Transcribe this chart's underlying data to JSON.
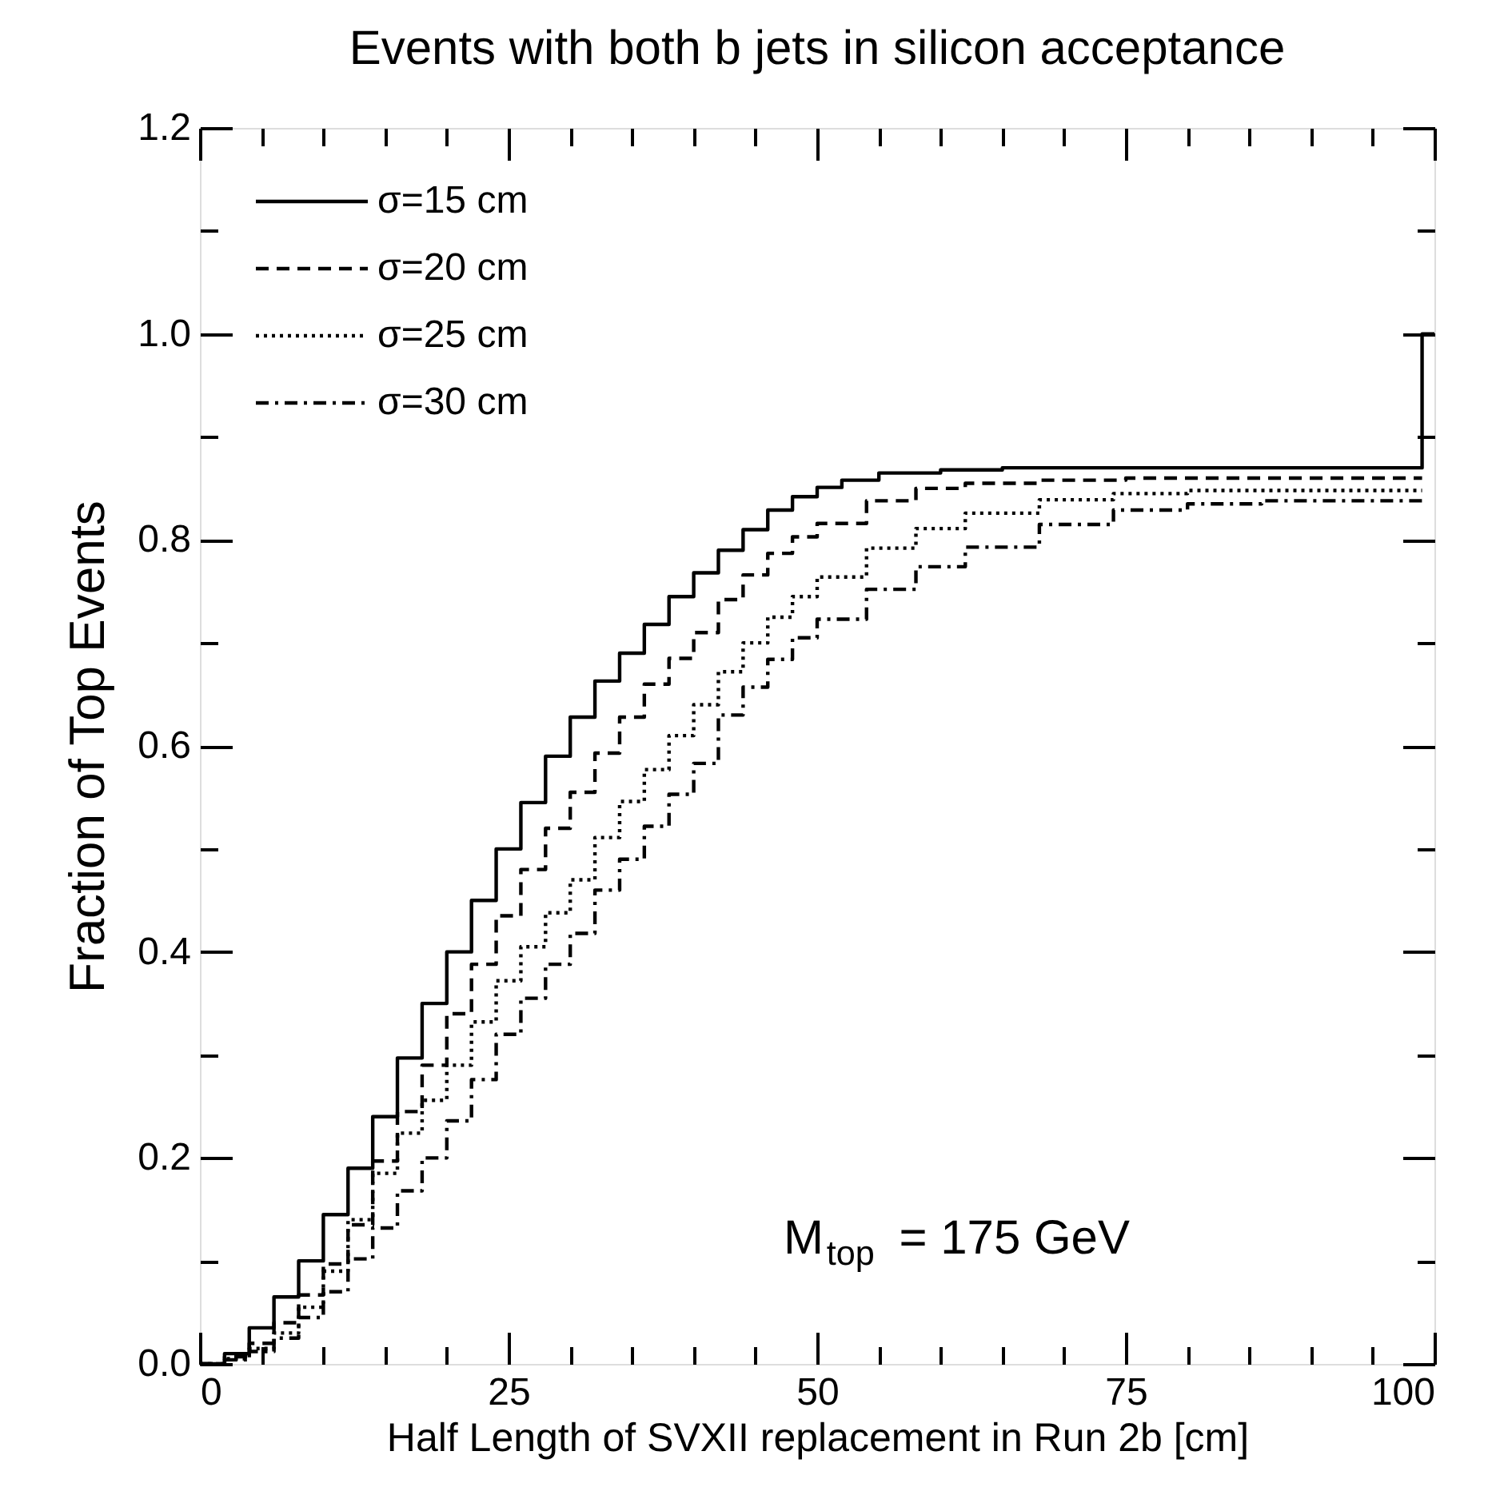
{
  "chart_data": {
    "type": "step",
    "title": "Events with both b jets in silicon acceptance",
    "xlabel": "Half Length of SVXII replacement in Run 2b [cm]",
    "ylabel": "Fraction of Top Events",
    "annotations": [
      "M$_{top}$ = 175 GeV"
    ],
    "xlim": [
      0,
      100
    ],
    "xticks": [
      0,
      {
        "value": 5,
        "label": null
      },
      {
        "value": 10,
        "label": null
      },
      {
        "value": 15,
        "label": null
      },
      {
        "value": 20,
        "label": null
      },
      25,
      {
        "value": 30,
        "label": null
      },
      {
        "value": 35,
        "label": null
      },
      {
        "value": 40,
        "label": null
      },
      {
        "value": 45,
        "label": null
      },
      50,
      {
        "value": 55,
        "label": null
      },
      {
        "value": 60,
        "label": null
      },
      {
        "value": 65,
        "label": null
      },
      {
        "value": 70,
        "label": null
      },
      75,
      {
        "value": 80,
        "label": null
      },
      {
        "value": 85,
        "label": null
      },
      {
        "value": 90,
        "label": null
      },
      {
        "value": 95,
        "label": null
      },
      100
    ],
    "ylim": [
      0,
      1.2
    ],
    "yticks": [
      {
        "value": 0,
        "label": "0.0"
      },
      {
        "value": 0.1,
        "label": null
      },
      {
        "value": 0.2,
        "label": "0.2"
      },
      {
        "value": 0.3,
        "label": null
      },
      {
        "value": 0.4,
        "label": "0.4"
      },
      {
        "value": 0.5,
        "label": null
      },
      {
        "value": 0.6,
        "label": "0.6"
      },
      {
        "value": 0.7,
        "label": null
      },
      {
        "value": 0.8,
        "label": "0.8"
      },
      {
        "value": 0.9,
        "label": null
      },
      {
        "value": 1,
        "label": "1.0"
      },
      {
        "value": 1.1,
        "label": null
      },
      {
        "value": 1.2,
        "label": "1.2"
      }
    ],
    "grid": false,
    "legend": "top left",
    "marker": "none",
    "series": [
      {
        "name": "σ=15 cm",
        "color": "#000000",
        "line_style": "solid",
        "x": [
          0,
          2,
          4,
          6,
          8,
          10,
          12,
          14,
          16,
          18,
          20,
          22,
          24,
          26,
          28,
          30,
          32,
          34,
          36,
          38,
          40,
          42,
          44,
          46,
          48,
          50,
          52,
          55,
          60,
          65,
          99,
          100
        ],
        "values": [
          0.0,
          0.01,
          0.035,
          0.065,
          0.1,
          0.145,
          0.19,
          0.24,
          0.297,
          0.35,
          0.4,
          0.45,
          0.5,
          0.545,
          0.59,
          0.628,
          0.663,
          0.69,
          0.718,
          0.745,
          0.768,
          0.79,
          0.81,
          0.829,
          0.842,
          0.851,
          0.858,
          0.865,
          0.868,
          0.87,
          1.0,
          1.0
        ]
      },
      {
        "name": "σ=20 cm",
        "color": "#000000",
        "line_style": "dashed",
        "x": [
          0,
          2,
          4,
          6,
          8,
          10,
          12,
          14,
          16,
          18,
          20,
          22,
          24,
          26,
          28,
          30,
          32,
          34,
          36,
          38,
          40,
          42,
          44,
          46,
          48,
          50,
          54,
          58,
          62,
          68,
          75,
          99
        ],
        "values": [
          0.0,
          0.007,
          0.02,
          0.04,
          0.067,
          0.097,
          0.135,
          0.197,
          0.245,
          0.29,
          0.34,
          0.388,
          0.435,
          0.48,
          0.52,
          0.555,
          0.593,
          0.628,
          0.66,
          0.685,
          0.71,
          0.742,
          0.766,
          0.787,
          0.803,
          0.816,
          0.838,
          0.85,
          0.855,
          0.858,
          0.86,
          0.86
        ]
      },
      {
        "name": "σ=25 cm",
        "color": "#000000",
        "line_style": "dotted",
        "x": [
          0,
          2,
          4,
          6,
          8,
          10,
          12,
          14,
          16,
          18,
          20,
          22,
          24,
          26,
          28,
          30,
          32,
          34,
          36,
          38,
          40,
          42,
          44,
          46,
          48,
          50,
          54,
          58,
          62,
          68,
          74,
          80,
          99
        ],
        "values": [
          0.0,
          0.005,
          0.015,
          0.03,
          0.055,
          0.09,
          0.14,
          0.185,
          0.224,
          0.256,
          0.29,
          0.332,
          0.372,
          0.405,
          0.438,
          0.47,
          0.511,
          0.546,
          0.577,
          0.61,
          0.64,
          0.672,
          0.7,
          0.725,
          0.745,
          0.764,
          0.792,
          0.811,
          0.826,
          0.839,
          0.845,
          0.848,
          0.848
        ]
      },
      {
        "name": "σ=30 cm",
        "color": "#000000",
        "line_style": "dashdot",
        "x": [
          0,
          2,
          4,
          6,
          8,
          10,
          12,
          14,
          16,
          18,
          20,
          22,
          24,
          26,
          28,
          30,
          32,
          34,
          36,
          38,
          40,
          42,
          44,
          46,
          48,
          50,
          54,
          58,
          62,
          68,
          74,
          80,
          86,
          99
        ],
        "values": [
          0.0,
          0.004,
          0.012,
          0.025,
          0.045,
          0.07,
          0.102,
          0.132,
          0.168,
          0.2,
          0.236,
          0.276,
          0.32,
          0.355,
          0.388,
          0.418,
          0.46,
          0.49,
          0.522,
          0.553,
          0.583,
          0.63,
          0.657,
          0.684,
          0.705,
          0.723,
          0.752,
          0.774,
          0.793,
          0.815,
          0.829,
          0.835,
          0.838,
          0.838
        ]
      }
    ]
  }
}
